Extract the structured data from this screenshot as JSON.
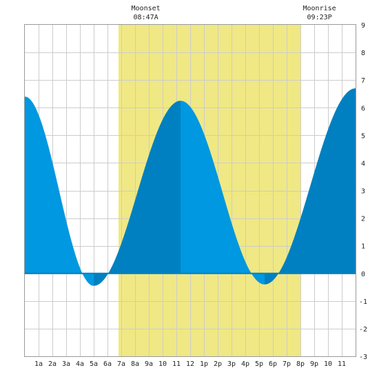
{
  "chart_data": {
    "type": "area",
    "title": "",
    "xlabel": "",
    "ylabel": "",
    "x_tick_labels": [
      "1a",
      "2a",
      "3a",
      "4a",
      "5a",
      "6a",
      "7a",
      "8a",
      "9a",
      "10",
      "11",
      "12",
      "1p",
      "2p",
      "3p",
      "4p",
      "5p",
      "6p",
      "7p",
      "8p",
      "9p",
      "10",
      "11"
    ],
    "y_tick_labels": [
      "9",
      "8",
      "7",
      "6",
      "5",
      "4",
      "3",
      "2",
      "1",
      "0",
      "-1",
      "-2",
      "-3"
    ],
    "xlim": [
      0,
      24
    ],
    "ylim": [
      -3,
      9
    ],
    "grid": true,
    "daylight_band": {
      "start_hour": 6.8,
      "end_hour": 20.0,
      "color": "#f0e884"
    },
    "moon_events": [
      {
        "label": "Moonset",
        "time": "08:47A",
        "hour": 8.78
      },
      {
        "label": "Moonrise",
        "time": "09:23P",
        "hour": 21.38
      }
    ],
    "tide_extremes": [
      {
        "hour": 0.0,
        "height": 6.4
      },
      {
        "hour": 5.0,
        "height": -0.45
      },
      {
        "hour": 11.3,
        "height": 6.25
      },
      {
        "hour": 17.4,
        "height": -0.4
      },
      {
        "hour": 24.0,
        "height": 6.7
      }
    ],
    "colors": {
      "rising": "#0080c0",
      "falling": "#0098e0",
      "grid": "#cccccc",
      "zero_line": "#0080c0"
    }
  }
}
